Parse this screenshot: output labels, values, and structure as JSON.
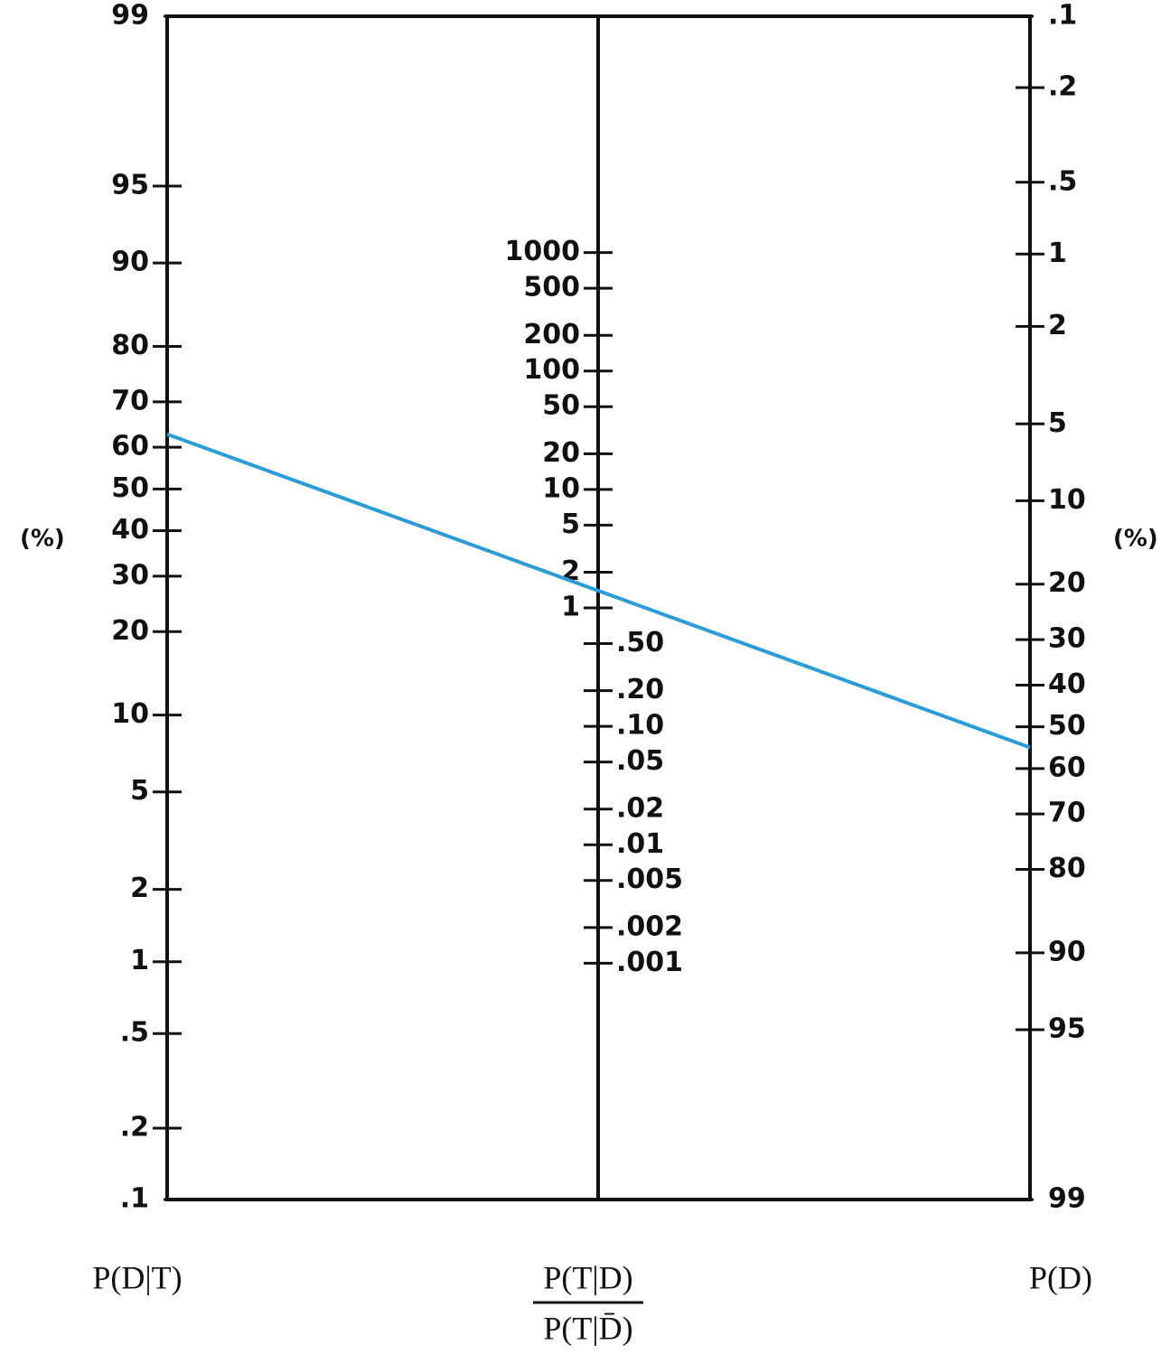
{
  "chart_data": {
    "type": "nomogram",
    "axes": [
      {
        "name": "P(D|T)",
        "unit": "(%)",
        "scale": "logit",
        "lim": [
          0.1,
          99
        ],
        "ticks": [
          99,
          95,
          90,
          80,
          70,
          60,
          50,
          40,
          30,
          20,
          10,
          5,
          2,
          1,
          {
            "value": 0.5,
            "label": ".5"
          },
          {
            "value": 0.2,
            "label": ".2"
          },
          {
            "value": 0.1,
            "label": ".1"
          }
        ]
      },
      {
        "name": "P(T|D)",
        "name_denominator": "P(T|D̄)",
        "scale": "log",
        "ticks": [
          1000,
          500,
          200,
          100,
          50,
          20,
          10,
          5,
          2,
          1,
          {
            "value": 0.5,
            "label": ".50"
          },
          {
            "value": 0.2,
            "label": ".20"
          },
          {
            "value": 0.1,
            "label": ".10"
          },
          {
            "value": 0.05,
            "label": ".05"
          },
          {
            "value": 0.02,
            "label": ".02"
          },
          {
            "value": 0.01,
            "label": ".01"
          },
          {
            "value": 0.005,
            "label": ".005"
          },
          {
            "value": 0.002,
            "label": ".002"
          },
          {
            "value": 0.001,
            "label": ".001"
          }
        ]
      },
      {
        "name": "P(D)",
        "unit": "(%)",
        "scale": "logit",
        "reversed": true,
        "lim": [
          0.1,
          99
        ],
        "ticks": [
          {
            "value": 0.1,
            "label": ".1"
          },
          {
            "value": 0.2,
            "label": ".2"
          },
          {
            "value": 0.5,
            "label": ".5"
          },
          1,
          2,
          5,
          10,
          20,
          30,
          40,
          50,
          60,
          70,
          80,
          90,
          95,
          99
        ]
      }
    ],
    "line": {
      "pretest": 55,
      "posttest": 63,
      "color": "#2b9cd8"
    }
  }
}
